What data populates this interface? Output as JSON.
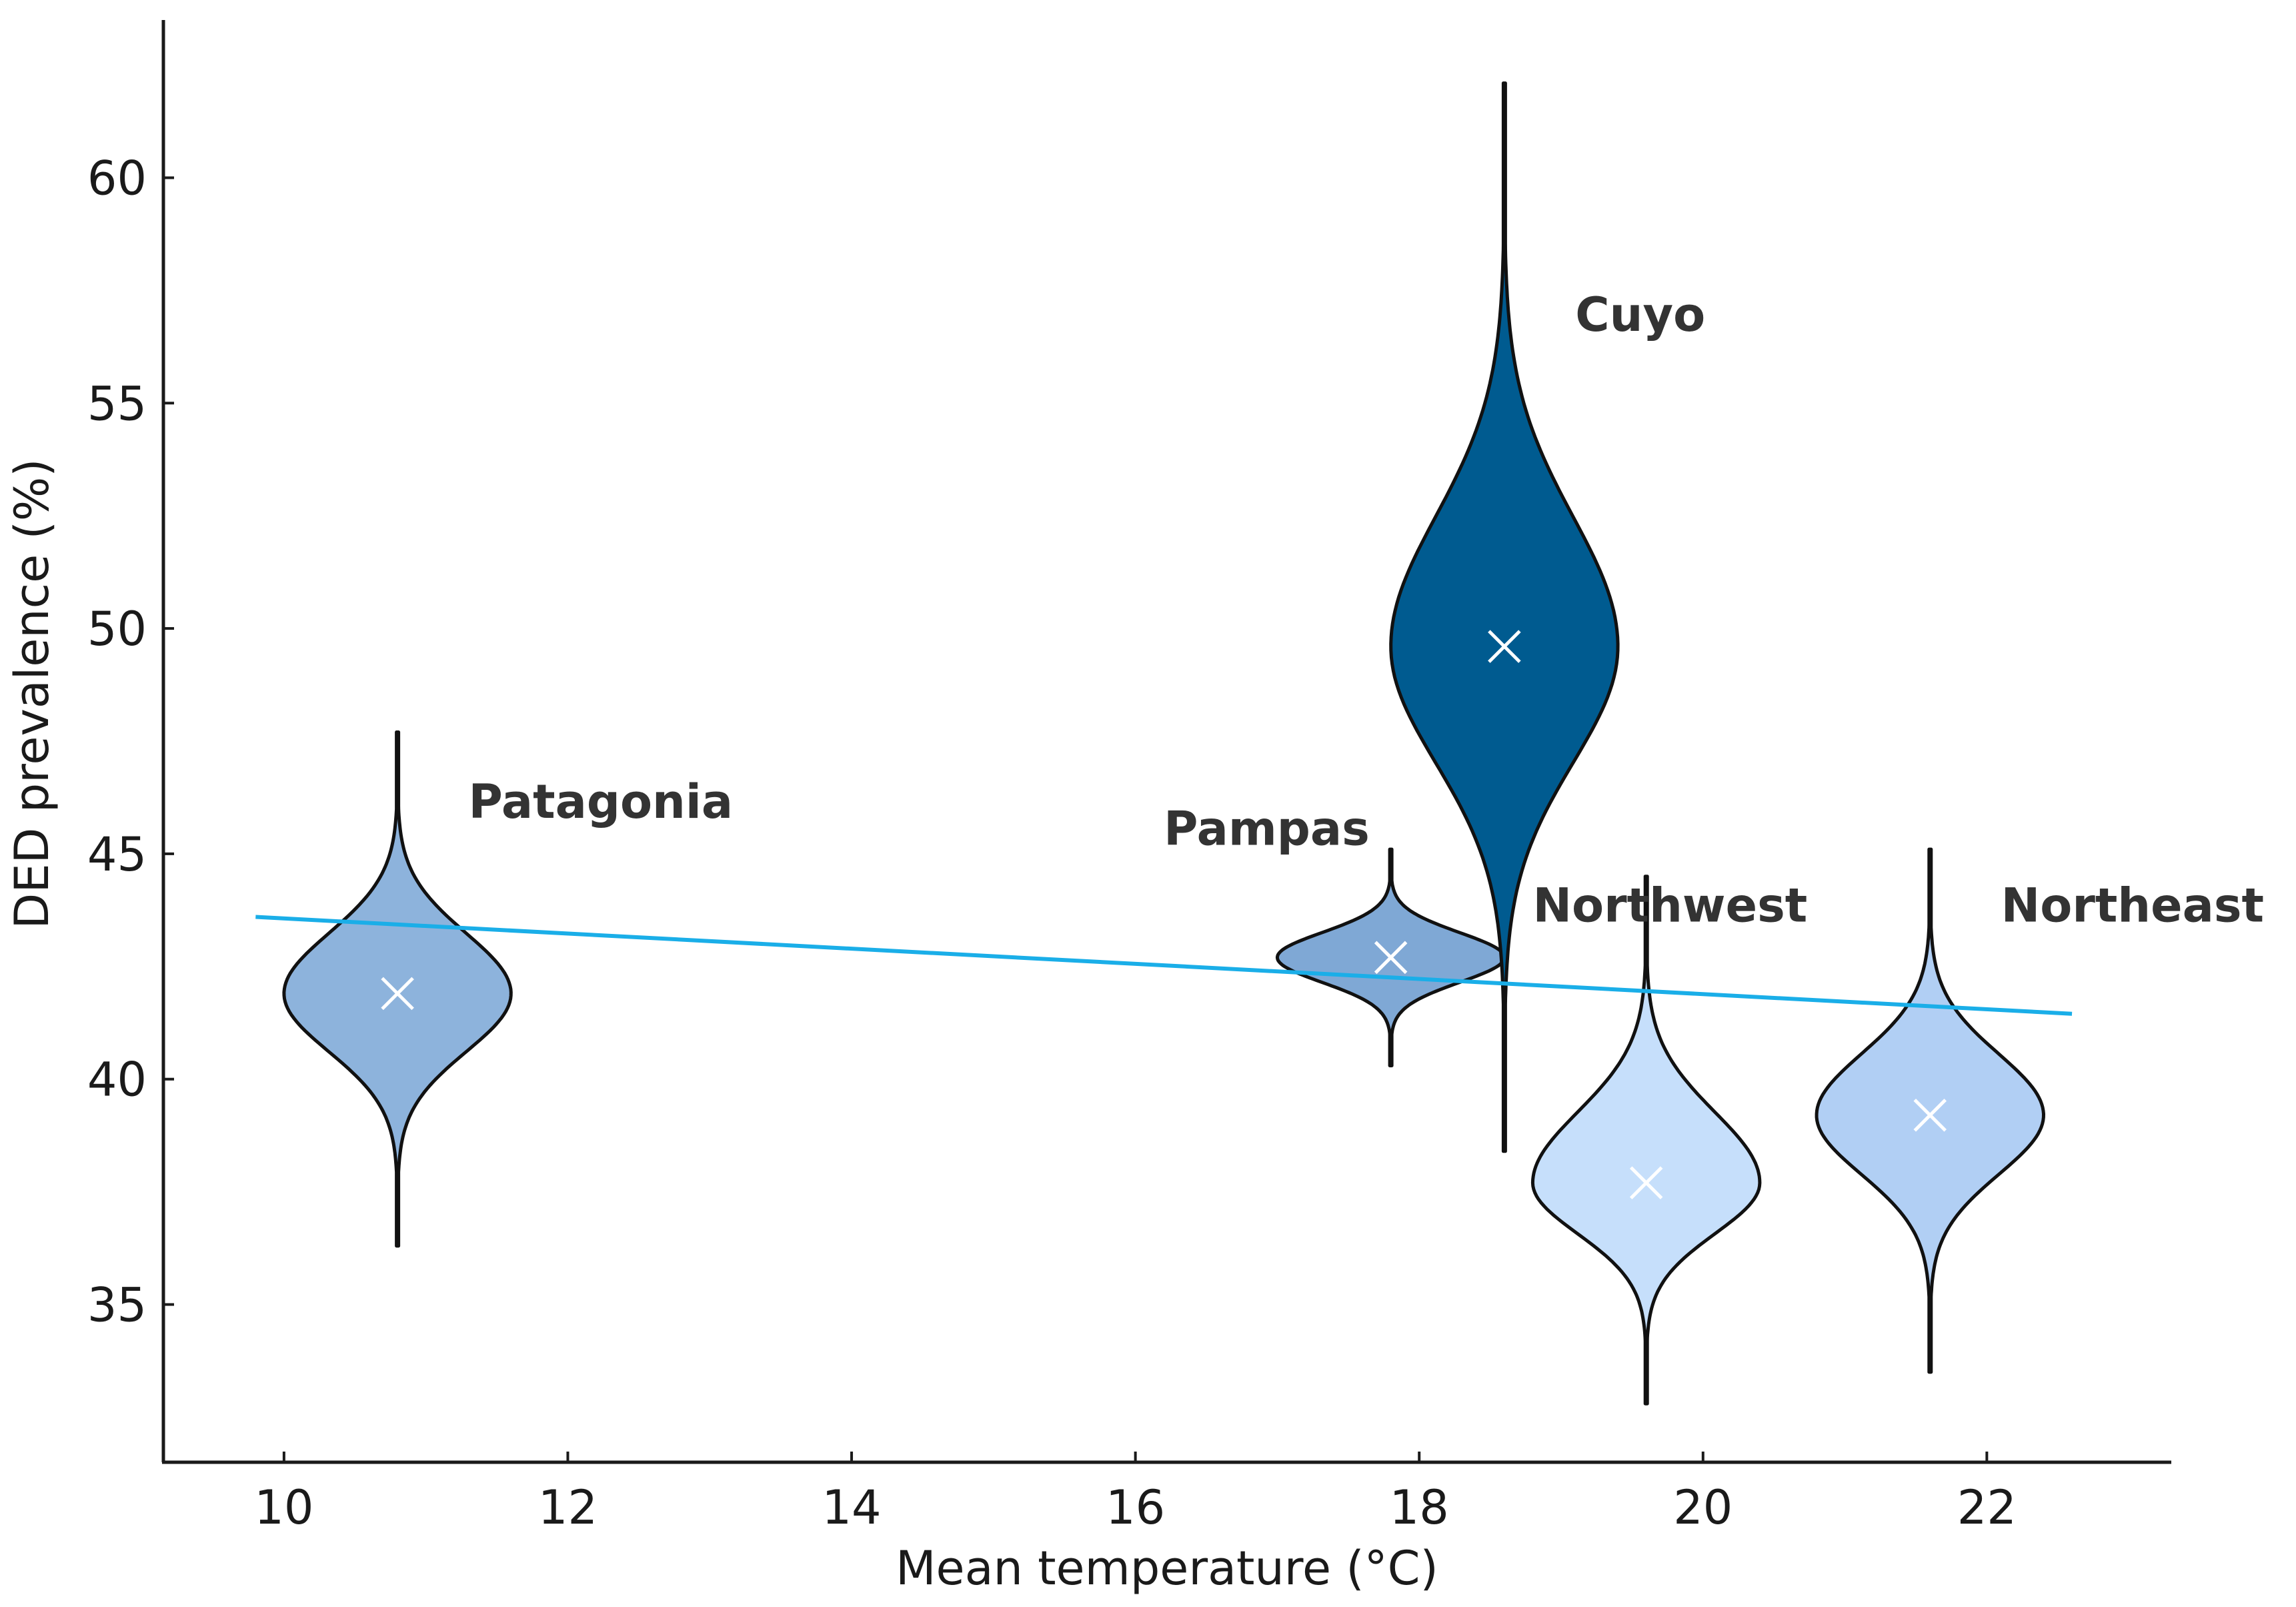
{
  "chart_data": {
    "type": "violin",
    "title": "",
    "xlabel": "Mean temperature (°C)",
    "ylabel": "DED prevalence (%)",
    "xlim": [
      9.15,
      23.3
    ],
    "ylim": [
      31.5,
      63.5
    ],
    "xticks": [
      10,
      12,
      14,
      16,
      18,
      20,
      22
    ],
    "yticks": [
      35,
      40,
      45,
      50,
      55,
      60
    ],
    "grid": false,
    "trendline": {
      "x": [
        9.8,
        22.6
      ],
      "y": [
        43.6,
        41.45
      ],
      "color": "#1aaee8"
    },
    "regions": [
      {
        "name": "Patagonia",
        "x": 10.8,
        "median": 41.9,
        "min": 36.3,
        "max": 47.7,
        "half_width": 0.8,
        "color": "#8db3dc",
        "label_x": 11.3,
        "label_y": 45.8
      },
      {
        "name": "Pampas",
        "x": 17.8,
        "median": 42.7,
        "min": 40.3,
        "max": 45.1,
        "half_width": 0.8,
        "color": "#7fa8d5",
        "label_x": 16.2,
        "label_y": 45.2
      },
      {
        "name": "Cuyo",
        "x": 18.6,
        "median": 49.6,
        "min": 38.4,
        "max": 62.1,
        "half_width": 0.8,
        "color": "#005b90",
        "label_x": 19.1,
        "label_y": 56.6
      },
      {
        "name": "Northwest",
        "x": 19.6,
        "median": 37.7,
        "min": 32.8,
        "max": 44.5,
        "half_width": 0.8,
        "color": "#c6dffb",
        "label_x": 18.8,
        "label_y": 43.5
      },
      {
        "name": "Northeast",
        "x": 21.6,
        "median": 39.2,
        "min": 33.5,
        "max": 45.1,
        "half_width": 0.8,
        "color": "#b1cff4",
        "label_x": 22.1,
        "label_y": 43.5
      }
    ]
  }
}
